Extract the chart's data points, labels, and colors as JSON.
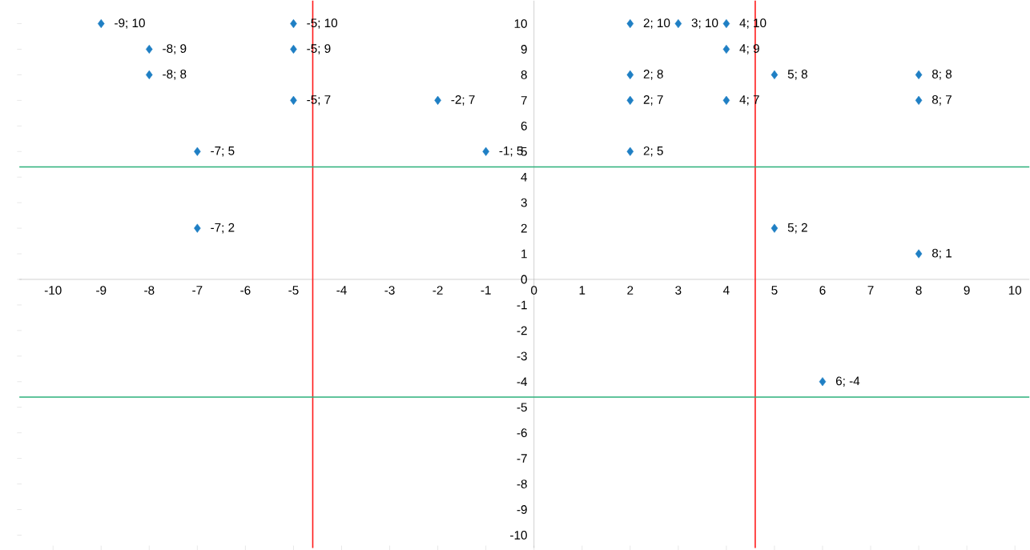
{
  "chart_data": {
    "type": "scatter",
    "x": [
      -9,
      -5,
      -8,
      -5,
      -8,
      -5,
      -2,
      -7,
      -1,
      -7,
      2,
      3,
      4,
      4,
      2,
      5,
      8,
      2,
      4,
      8,
      2,
      5,
      8,
      6
    ],
    "values": [
      10,
      10,
      9,
      9,
      8,
      7,
      7,
      5,
      5,
      2,
      10,
      10,
      10,
      9,
      8,
      8,
      8,
      7,
      7,
      7,
      5,
      2,
      1,
      -4
    ],
    "value_labels": [
      "-9; 10",
      "-5; 10",
      "-8; 9",
      "-5; 9",
      "-8; 8",
      "-5; 7",
      "-2; 7",
      "-7; 5",
      "-1; 5",
      "-7; 2",
      "2; 10",
      "3; 10",
      "4; 10",
      "4; 9",
      "2; 8",
      "5; 8",
      "8; 8",
      "2; 7",
      "4; 7",
      "8; 7",
      "2; 5",
      "5; 2",
      "8; 1",
      "6; -4"
    ],
    "color": "#1f7fc4",
    "marker": "diamond",
    "xlim": [
      -10.7,
      10.3
    ],
    "ylim": [
      -10.5,
      10.9
    ],
    "xticks": [
      -10,
      -9,
      -8,
      -7,
      -6,
      -5,
      -4,
      -3,
      -2,
      -1,
      0,
      1,
      2,
      3,
      4,
      5,
      6,
      7,
      8,
      9,
      10
    ],
    "yticks": [
      -10,
      -9,
      -8,
      -7,
      -6,
      -5,
      -4,
      -3,
      -2,
      -1,
      0,
      1,
      2,
      3,
      4,
      5,
      6,
      7,
      8,
      9,
      10
    ],
    "ref_lines": [
      {
        "axis": "x",
        "value": -4.6,
        "color": "#ff1a1a"
      },
      {
        "axis": "x",
        "value": 4.6,
        "color": "#ff1a1a"
      },
      {
        "axis": "y",
        "value": 4.4,
        "color": "#2bb07a"
      },
      {
        "axis": "y",
        "value": -4.6,
        "color": "#2bb07a"
      }
    ]
  }
}
